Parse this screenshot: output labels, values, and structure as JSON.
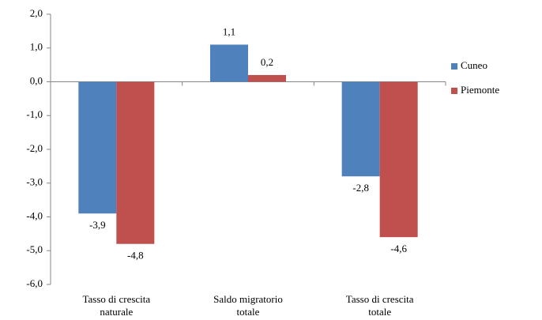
{
  "chart_data": {
    "type": "bar",
    "categories": [
      "Tasso di crescita naturale",
      "Saldo migratorio totale",
      "Tasso di crescita totale"
    ],
    "series": [
      {
        "name": "Cuneo",
        "color": "#4f81bd",
        "values": [
          -3.9,
          1.1,
          -2.8
        ],
        "value_labels": [
          "-3,9",
          "1,1",
          "-2,8"
        ]
      },
      {
        "name": "Piemonte",
        "color": "#c0504d",
        "values": [
          -4.8,
          0.2,
          -4.6
        ],
        "value_labels": [
          "-4,8",
          "0,2",
          "-4,6"
        ]
      }
    ],
    "ylim": [
      -6,
      2
    ],
    "yticks": [
      {
        "value": 2,
        "label": "2,0"
      },
      {
        "value": 1,
        "label": "1,0"
      },
      {
        "value": 0,
        "label": "0,0"
      },
      {
        "value": -1,
        "label": "-1,0"
      },
      {
        "value": -2,
        "label": "-2,0"
      },
      {
        "value": -3,
        "label": "-3,0"
      },
      {
        "value": -4,
        "label": "-4,0"
      },
      {
        "value": -5,
        "label": "-5,0"
      },
      {
        "value": -6,
        "label": "-6,0"
      }
    ],
    "legend": "right"
  }
}
